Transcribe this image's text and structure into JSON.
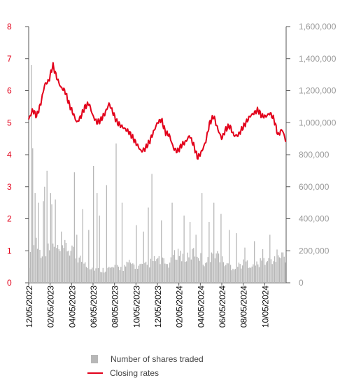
{
  "chart_data": {
    "type": "bar+line",
    "left_axis": {
      "ticks": [
        "0",
        "1",
        "2",
        "3",
        "4",
        "5",
        "6",
        "7",
        "8"
      ],
      "range": [
        0,
        8
      ],
      "color": "#e2001a"
    },
    "right_axis": {
      "ticks": [
        "0",
        "200,000",
        "400,000",
        "600,000",
        "800,000",
        "1,000,000",
        "1,200,000",
        "1,400,000",
        "1,600,000"
      ],
      "range": [
        0,
        1600000
      ],
      "color": "#999999"
    },
    "x_ticks": [
      "12/05/2022",
      "02/05/2023",
      "04/05/2023",
      "06/05/2023",
      "08/05/2023",
      "10/05/2023",
      "12/05/2023",
      "02/05/2024",
      "04/05/2024",
      "06/05/2024",
      "08/05/2024",
      "10/05/2024"
    ],
    "series": [
      {
        "name": "Number of shares traded",
        "kind": "bar",
        "axis": "right",
        "color": "#b7b7b7",
        "baseline": [
          150000,
          300000,
          330000,
          250000,
          230000,
          250000,
          270000,
          270000,
          240000,
          250000,
          280000,
          240000,
          230000,
          200000,
          180000,
          160000,
          130000,
          120000,
          110000,
          100000,
          100000,
          110000,
          110000,
          120000,
          120000,
          110000,
          130000,
          150000,
          140000,
          130000,
          130000,
          130000,
          140000,
          160000,
          180000,
          170000,
          160000,
          140000,
          150000,
          200000,
          240000,
          210000,
          190000,
          190000,
          230000,
          240000,
          200000,
          160000,
          160000,
          210000,
          240000,
          210000,
          170000,
          140000,
          130000,
          120000,
          130000,
          140000,
          150000,
          150000,
          140000,
          140000,
          150000,
          170000,
          160000,
          170000,
          180000,
          220000,
          220000,
          180000
        ],
        "spikes": [
          [
            2,
            1360000
          ],
          [
            3,
            840000
          ],
          [
            5,
            560000
          ],
          [
            8,
            500000
          ],
          [
            12,
            510000
          ],
          [
            13,
            600000
          ],
          [
            15,
            700000
          ],
          [
            18,
            560000
          ],
          [
            19,
            490000
          ],
          [
            22,
            520000
          ],
          [
            27,
            320000
          ],
          [
            38,
            690000
          ],
          [
            40,
            300000
          ],
          [
            45,
            460000
          ],
          [
            50,
            330000
          ],
          [
            54,
            730000
          ],
          [
            57,
            560000
          ],
          [
            59,
            420000
          ],
          [
            65,
            610000
          ],
          [
            73,
            870000
          ],
          [
            78,
            500000
          ],
          [
            90,
            360000
          ],
          [
            96,
            320000
          ],
          [
            100,
            470000
          ],
          [
            103,
            680000
          ],
          [
            111,
            390000
          ],
          [
            120,
            500000
          ],
          [
            130,
            420000
          ],
          [
            135,
            380000
          ],
          [
            140,
            300000
          ],
          [
            145,
            560000
          ],
          [
            151,
            380000
          ],
          [
            155,
            500000
          ],
          [
            161,
            430000
          ],
          [
            168,
            330000
          ],
          [
            174,
            310000
          ],
          [
            181,
            220000
          ],
          [
            189,
            260000
          ],
          [
            196,
            210000
          ],
          [
            202,
            300000
          ],
          [
            212,
            190000
          ]
        ]
      },
      {
        "name": "Closing rates",
        "kind": "line",
        "axis": "left",
        "color": "#e2001a",
        "values": [
          5.1,
          5.4,
          5.2,
          5.6,
          6.2,
          6.3,
          6.8,
          6.4,
          6.1,
          6.0,
          5.6,
          5.3,
          5.0,
          5.2,
          5.5,
          5.6,
          5.2,
          5.0,
          5.1,
          5.3,
          5.6,
          5.3,
          5.0,
          4.9,
          4.8,
          4.7,
          4.5,
          4.3,
          4.1,
          4.2,
          4.4,
          4.7,
          5.0,
          5.1,
          4.7,
          4.6,
          4.2,
          4.1,
          4.3,
          4.4,
          4.6,
          4.3,
          3.9,
          4.1,
          4.4,
          5.0,
          5.2,
          4.8,
          4.5,
          4.8,
          4.9,
          4.6,
          4.6,
          4.8,
          5.0,
          5.2,
          5.3,
          5.4,
          5.2,
          5.2,
          5.3,
          5.1,
          4.6,
          4.8,
          4.4
        ]
      }
    ],
    "grid": false
  },
  "legend": {
    "shares_label": "Number of shares traded",
    "closing_label": "Closing rates"
  }
}
